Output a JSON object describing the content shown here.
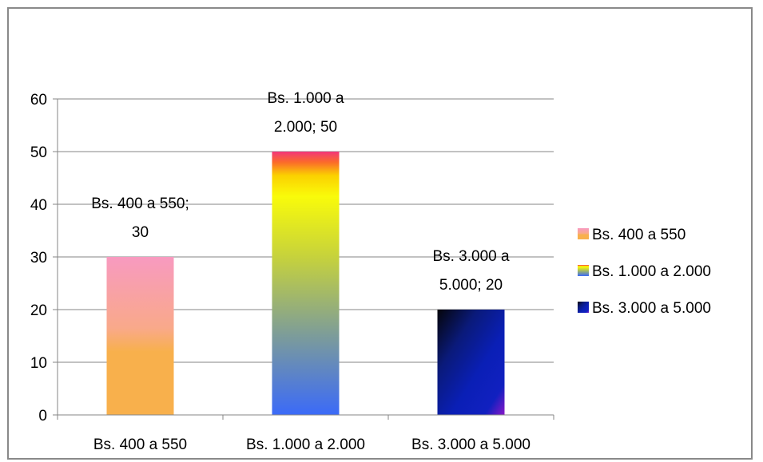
{
  "chart_data": {
    "type": "bar",
    "title": "",
    "xlabel": "",
    "ylabel": "",
    "categories": [
      "Bs. 400 a 550",
      "Bs. 1.000 a 2.000",
      "Bs. 3.000 a 5.000"
    ],
    "values": [
      30,
      50,
      20
    ],
    "ylim": [
      0,
      60
    ],
    "yticks": [
      0,
      10,
      20,
      30,
      40,
      50,
      60
    ],
    "grid": true,
    "legend_position": "right",
    "data_labels": [
      [
        "Bs. 400 a 550;",
        "30"
      ],
      [
        "Bs. 1.000 a",
        "2.000; 50"
      ],
      [
        "Bs. 3.000 a",
        "5.000; 20"
      ]
    ],
    "legend": [
      "Bs. 400 a 550",
      "Bs. 1.000 a 2.000",
      "Bs. 3.000 a 5.000"
    ],
    "colors": {
      "axis": "#868686",
      "grid": "#868686",
      "frame": "#898989"
    }
  }
}
